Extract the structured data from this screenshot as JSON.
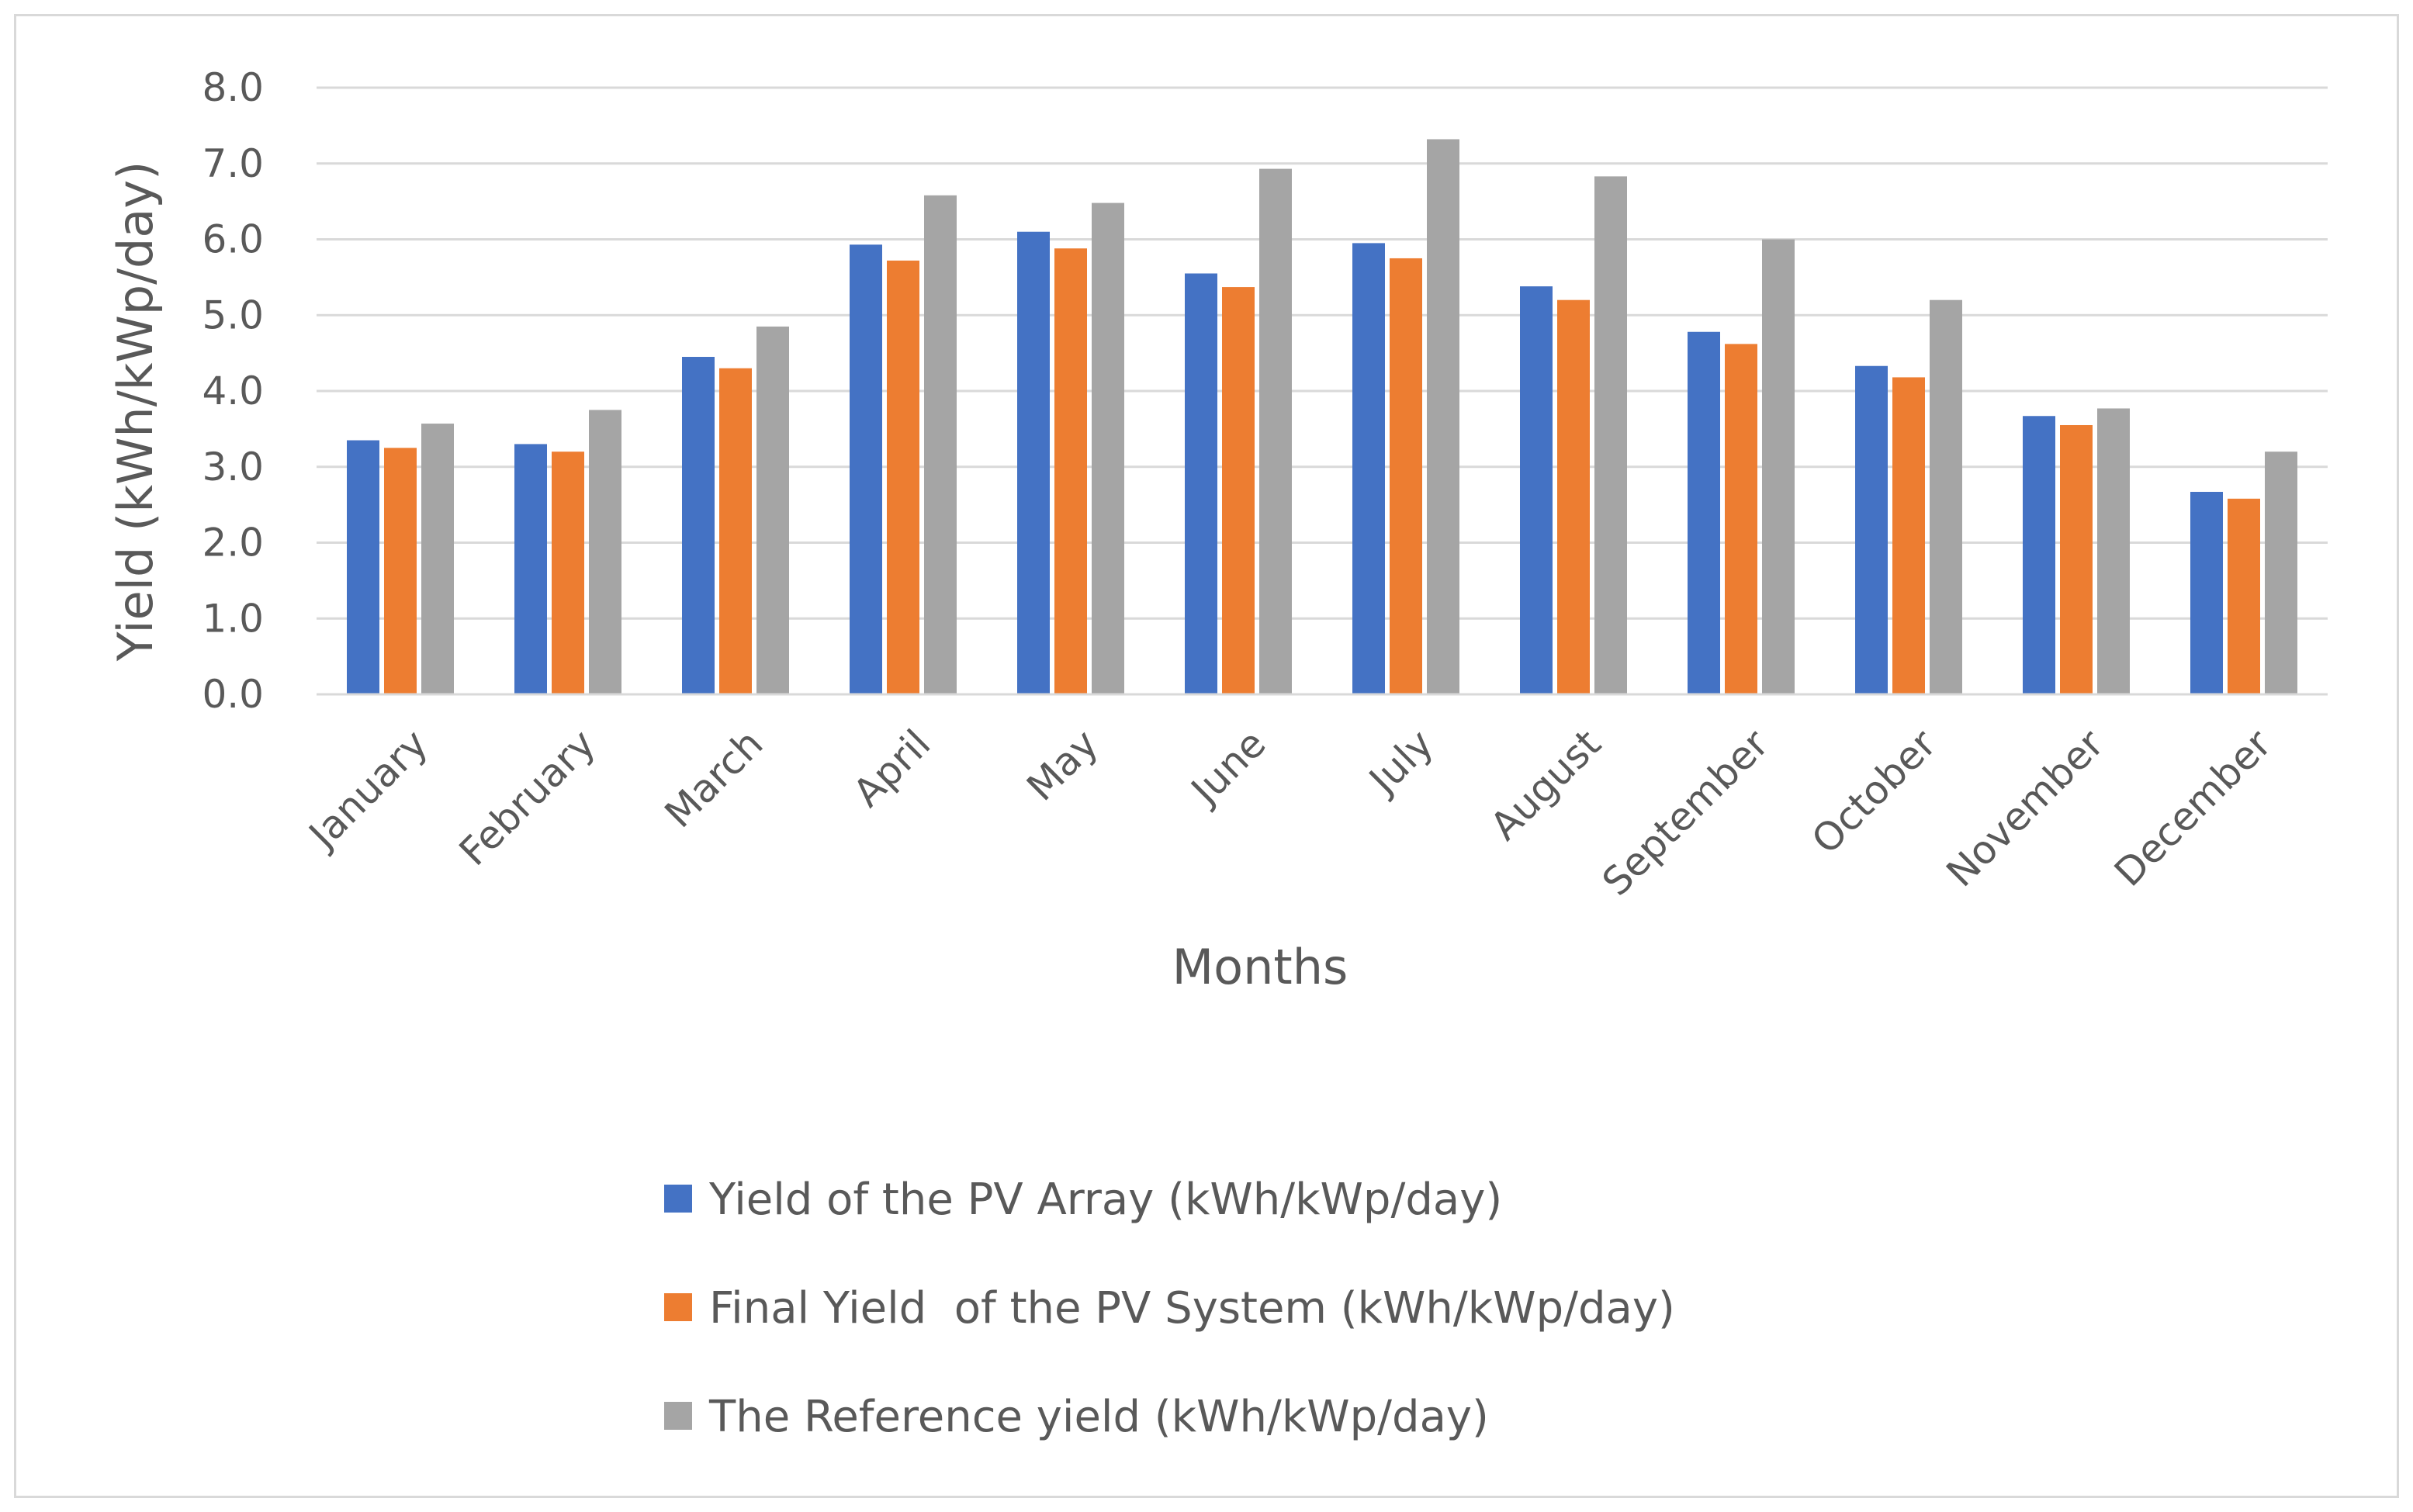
{
  "chart_data": {
    "type": "bar",
    "categories": [
      "January",
      "February",
      "March",
      "April",
      "May",
      "June",
      "July",
      "August",
      "September",
      "October",
      "November",
      "December"
    ],
    "series": [
      {
        "name": "Yield of the PV Array (kWh/kWp/day)",
        "color": "#4472c4",
        "values": [
          3.35,
          3.3,
          4.45,
          5.93,
          6.1,
          5.55,
          5.95,
          5.38,
          4.78,
          4.33,
          3.67,
          2.67
        ]
      },
      {
        "name": "Final Yield  of the PV System (kWh/kWp/day)",
        "color": "#ed7d31",
        "values": [
          3.25,
          3.2,
          4.3,
          5.72,
          5.88,
          5.37,
          5.75,
          5.2,
          4.62,
          4.18,
          3.55,
          2.58
        ]
      },
      {
        "name": "The Reference yield (kWh/kWp/day)",
        "color": "#a5a5a5",
        "values": [
          3.57,
          3.75,
          4.85,
          6.58,
          6.48,
          6.93,
          7.32,
          6.83,
          6.0,
          5.2,
          3.77,
          3.2
        ]
      }
    ],
    "ylim": [
      0,
      8
    ],
    "yticks": [
      "0.0",
      "1.0",
      "2.0",
      "3.0",
      "4.0",
      "5.0",
      "6.0",
      "7.0",
      "8.0"
    ],
    "xlabel": "Months",
    "ylabel": "Yield (kWh/kWp/day)",
    "grid": true,
    "legend": "bottom"
  }
}
